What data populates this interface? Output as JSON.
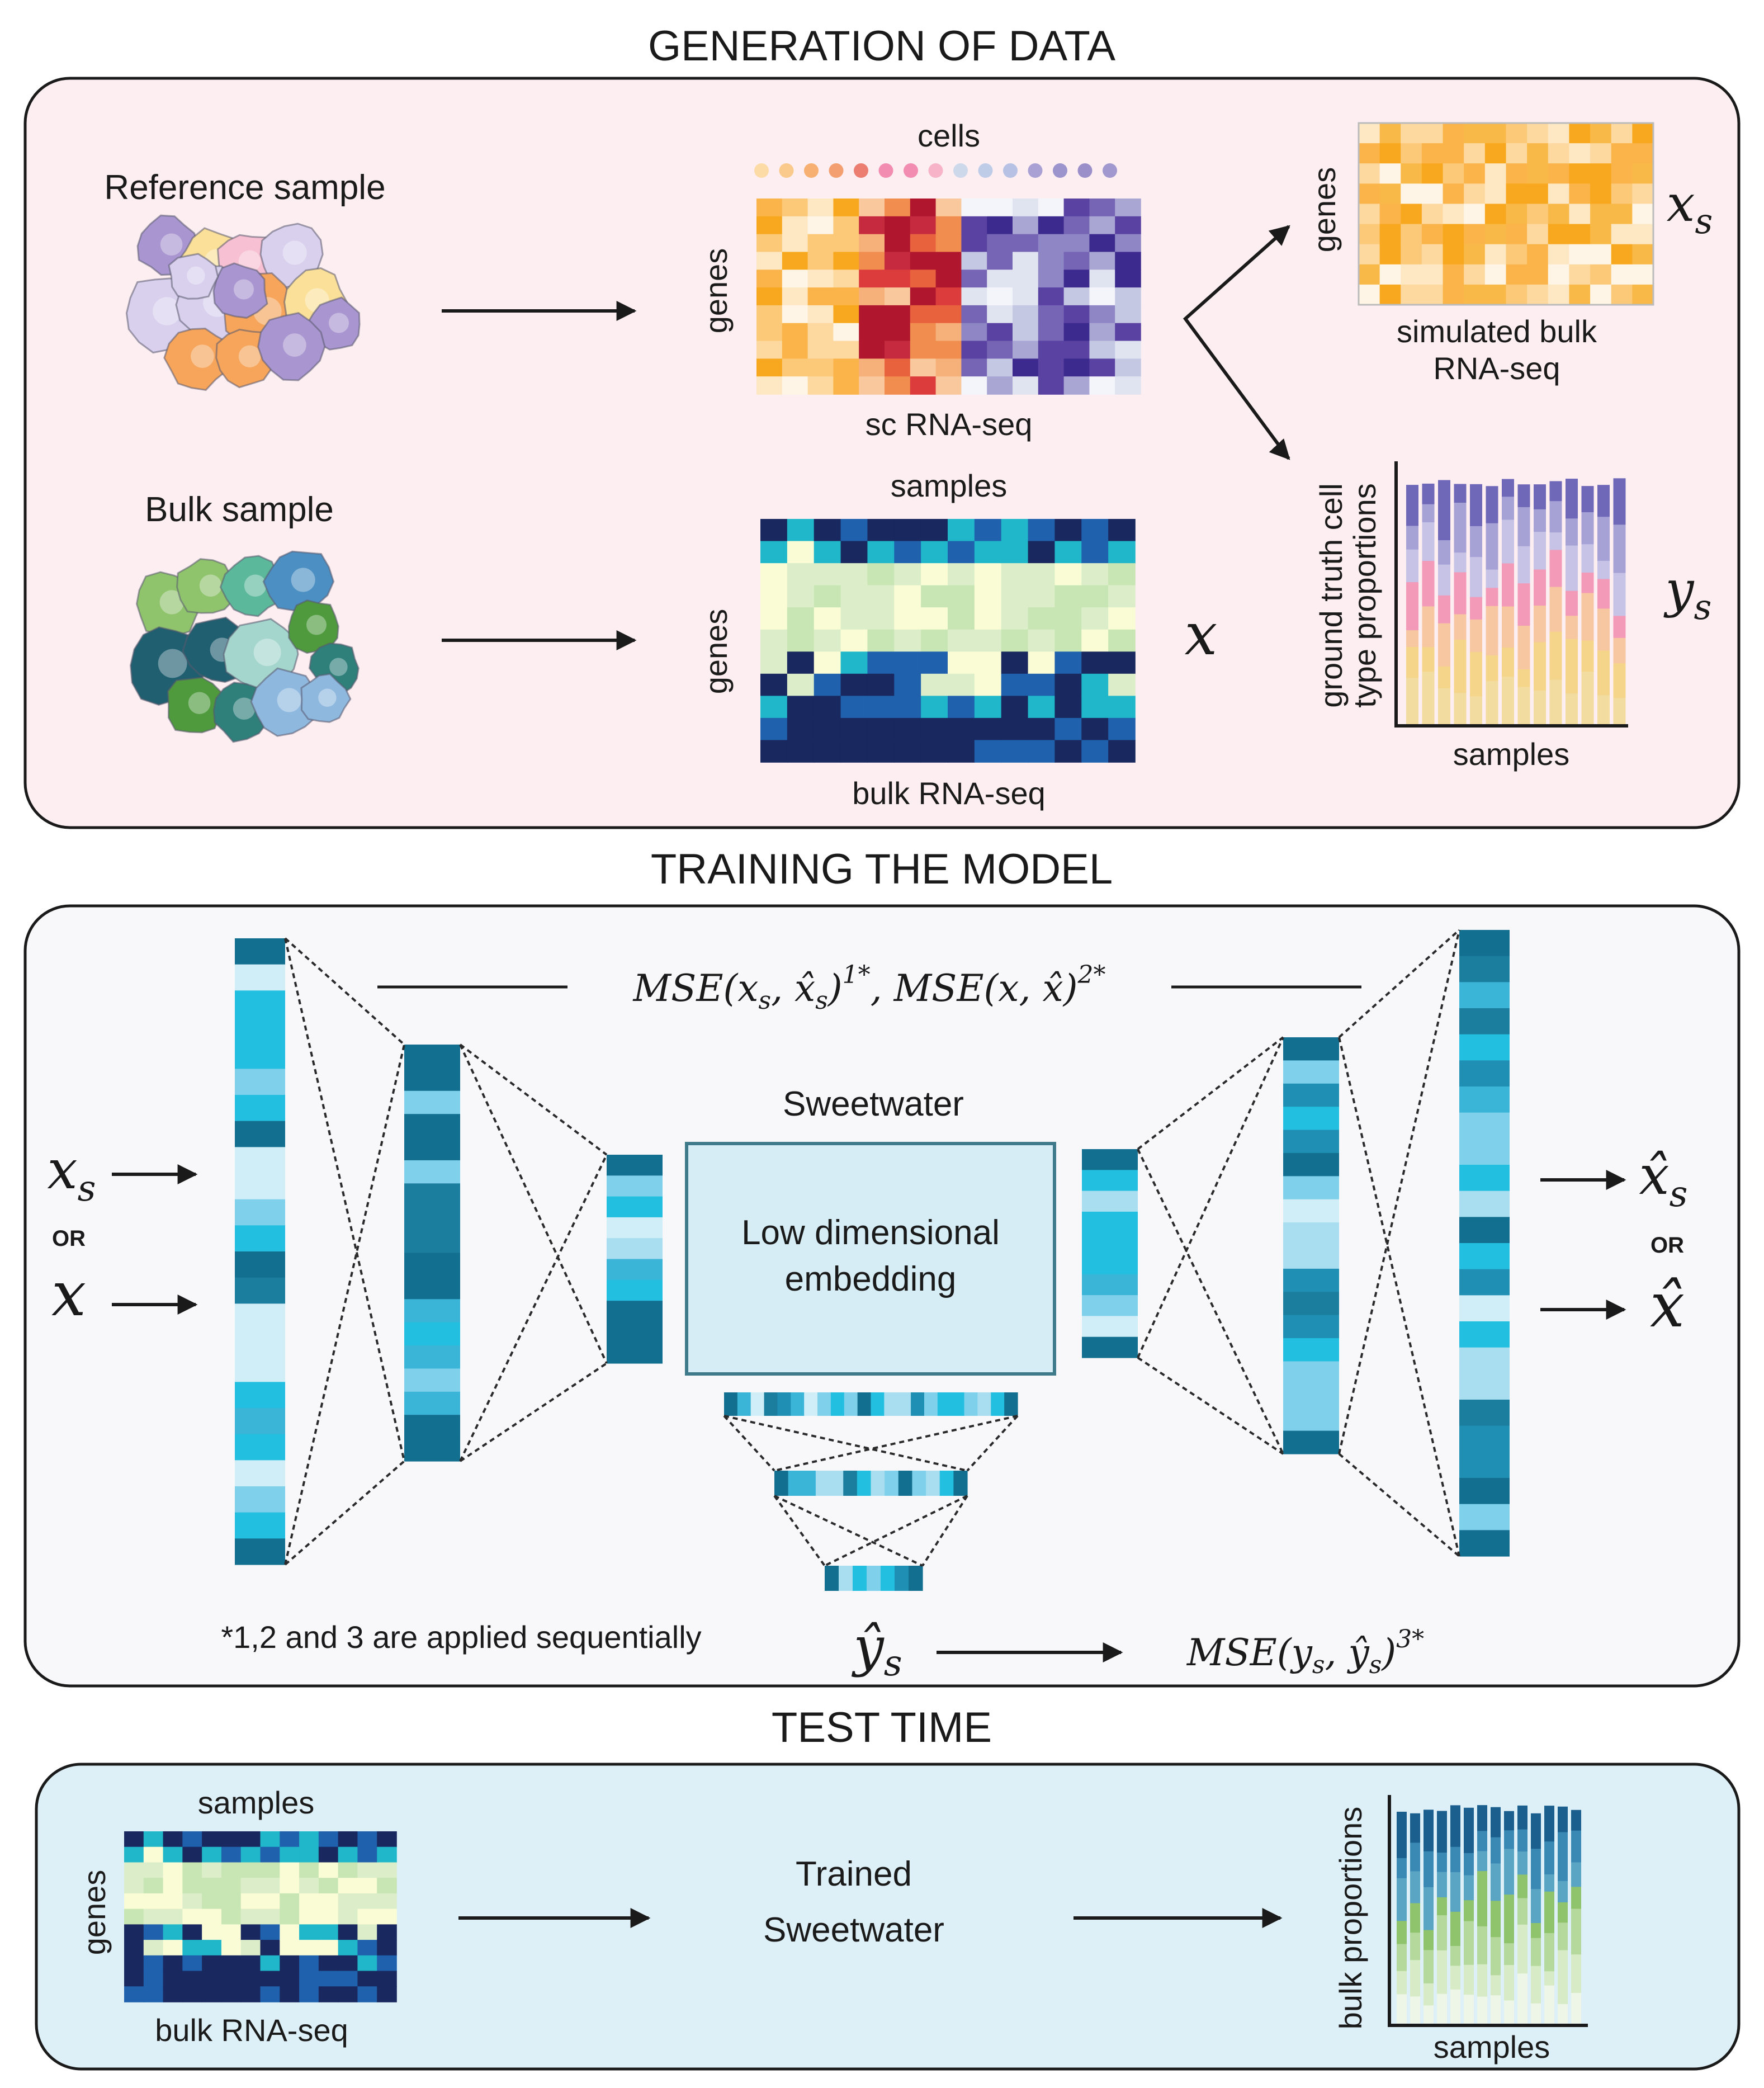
{
  "sections": {
    "generation_title": "GENERATION OF DATA",
    "training_title": "TRAINING THE MODEL",
    "test_title": "TEST TIME"
  },
  "generation": {
    "reference_label": "Reference sample",
    "bulk_label": "Bulk sample",
    "cells_label": "cells",
    "genes_label": "genes",
    "sc_label": "sc RNA-seq",
    "samples_label": "samples",
    "bulk_rna_label": "bulk RNA-seq",
    "simulated_label_1": "simulated bulk",
    "simulated_label_2": "RNA-seq",
    "ground_truth_1": "ground truth cell",
    "ground_truth_2": "type proportions",
    "xs_symbol": "xs",
    "x_symbol": "x",
    "ys_symbol": "ys"
  },
  "training": {
    "loss_formula_1": "MSE(xs, x̂s)",
    "loss_sup_1": "1*",
    "loss_formula_2": "MSE(x, x̂)",
    "loss_sup_2": "2*",
    "model_name": "Sweetwater",
    "embedding_line_1": "Low dimensional",
    "embedding_line_2": "embedding",
    "or_label": "OR",
    "input_xs": "xs",
    "input_x": "x",
    "output_xs_hat": "x̂s",
    "output_x_hat": "x̂",
    "ys_hat": "ŷs",
    "loss_formula_3": "MSE(ys, ŷs)",
    "loss_sup_3": "3*",
    "footnote": "*1,2 and 3 are applied sequentially"
  },
  "test": {
    "samples_label": "samples",
    "genes_label": "genes",
    "bulk_rna_label": "bulk RNA-seq",
    "trained_line_1": "Trained",
    "trained_line_2": "Sweetwater",
    "bulk_proportions": "bulk proportions",
    "samples_axis": "samples"
  },
  "colors": {
    "panel1_bg": "#fdeef1",
    "panel2_bg": "#f8f8fb",
    "panel3_bg": "#def0f7",
    "embedding_fill": "#d6edf5",
    "embedding_stroke": "#3f7a8a",
    "arrow": "#1a1a1a"
  }
}
